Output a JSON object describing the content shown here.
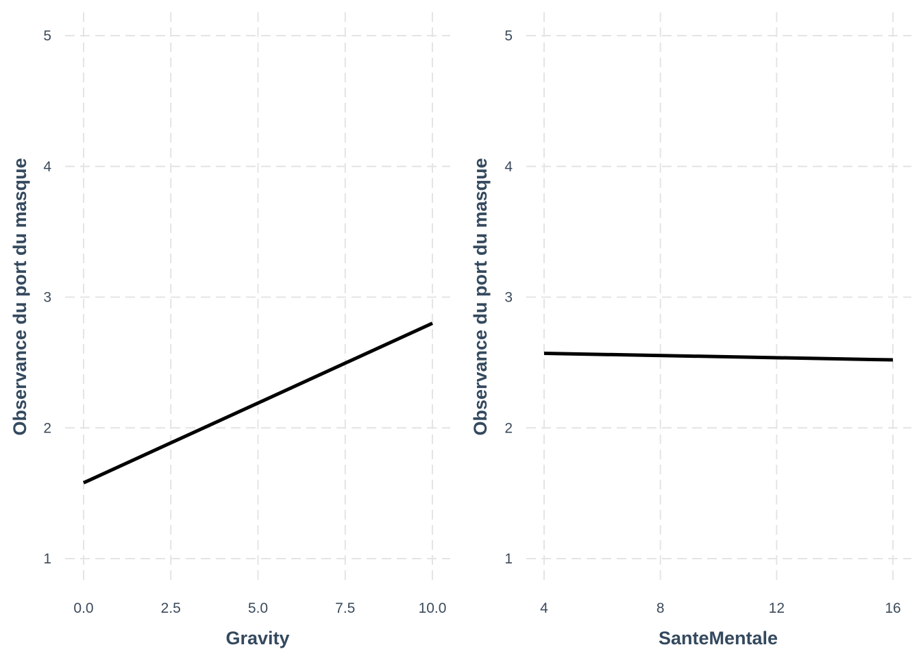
{
  "chart_data": [
    {
      "type": "line",
      "title": "",
      "xlabel": "Gravity",
      "ylabel": "Observance du port du masque",
      "xlim": [
        0,
        10
      ],
      "ylim": [
        1,
        5
      ],
      "xticks": [
        "0.0",
        "2.5",
        "5.0",
        "7.5",
        "10.0"
      ],
      "yticks": [
        "1",
        "2",
        "3",
        "4",
        "5"
      ],
      "grid": true,
      "series": [
        {
          "x": [
            0,
            10
          ],
          "y": [
            1.58,
            2.8
          ]
        }
      ]
    },
    {
      "type": "line",
      "title": "",
      "xlabel": "SanteMentale",
      "ylabel": "Observance du port du masque",
      "xlim": [
        4,
        16
      ],
      "ylim": [
        1,
        5
      ],
      "xticks": [
        "4",
        "8",
        "12",
        "16"
      ],
      "yticks": [
        "1",
        "2",
        "3",
        "4",
        "5"
      ],
      "grid": true,
      "series": [
        {
          "x": [
            4,
            16
          ],
          "y": [
            2.57,
            2.52
          ]
        }
      ]
    }
  ],
  "colors": {
    "line": "#000000",
    "grid": "#e4e4e4",
    "text": "#34495e"
  }
}
